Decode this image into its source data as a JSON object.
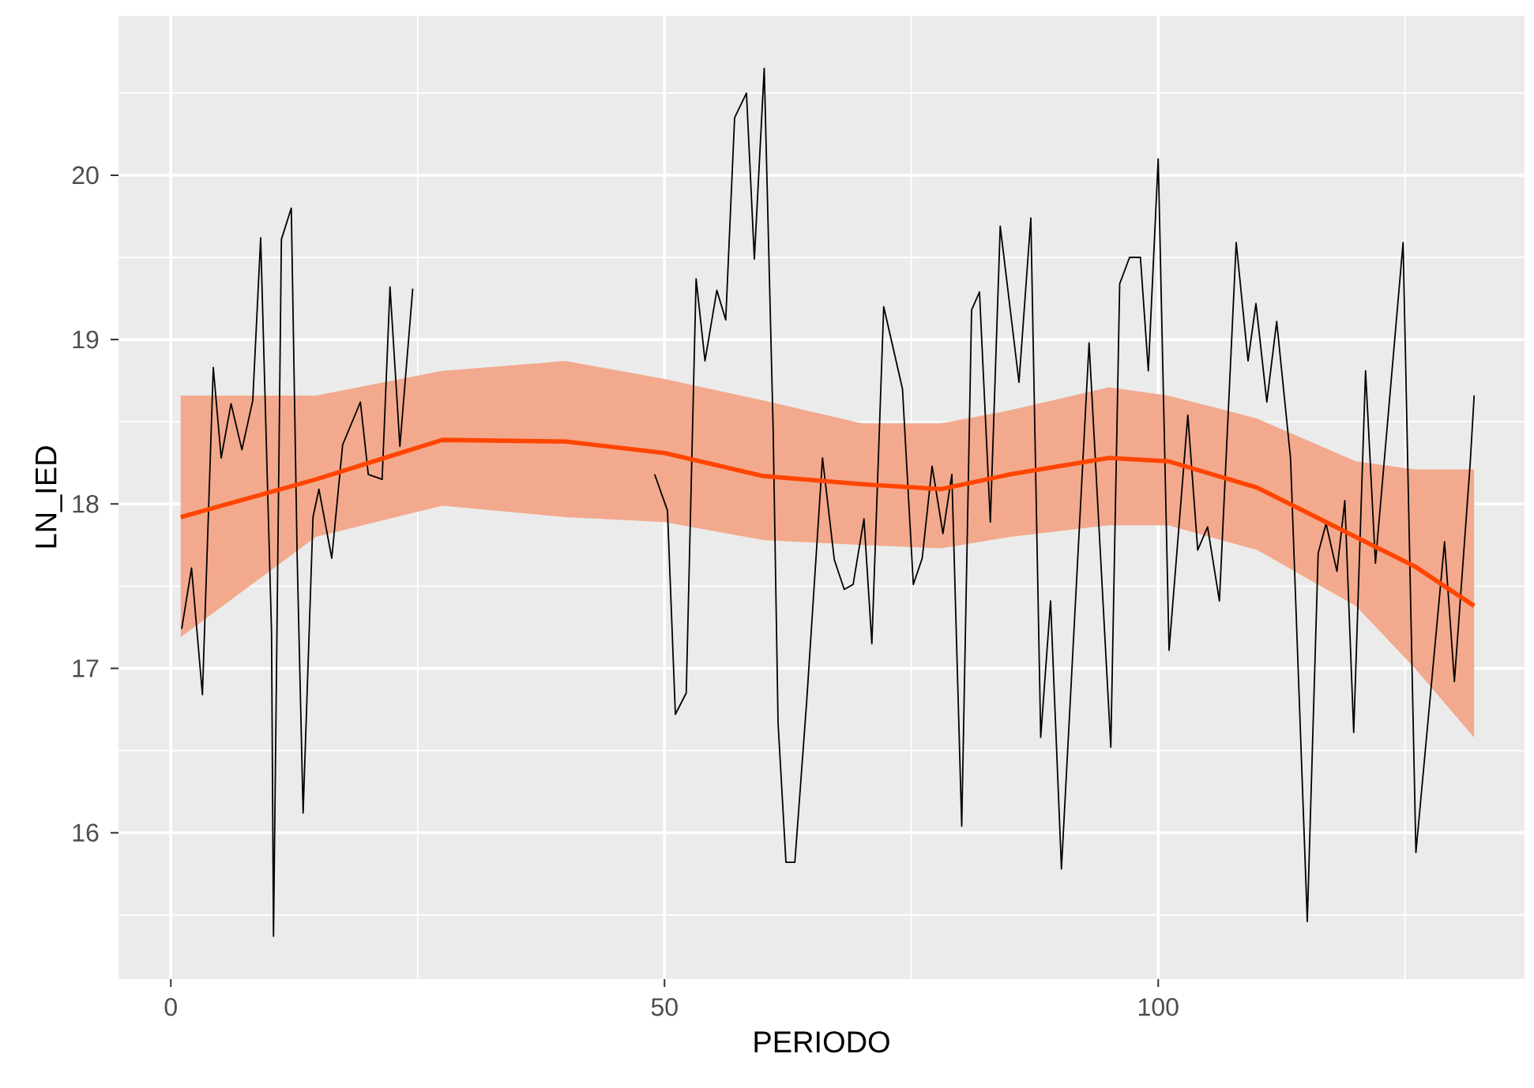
{
  "chart_data": {
    "type": "line",
    "xlabel": "PERIODO",
    "ylabel": "LN_IED",
    "xlim": [
      -5.3,
      137.1
    ],
    "ylim": [
      15.11,
      20.97
    ],
    "xticks": [
      0,
      50,
      100
    ],
    "yticks": [
      16,
      17,
      18,
      19,
      20
    ],
    "grid": true,
    "series": [
      {
        "color": "#000000",
        "x": [
          1.1,
          2.1,
          3.2,
          4.3,
          5.1,
          6.1,
          7.2,
          8.3,
          9.1,
          10.2,
          10.4,
          11.2,
          12.2,
          12.8,
          13.4,
          14.4,
          15.0,
          16.3,
          17.4,
          19.2,
          20.0,
          21.4,
          22.2,
          23.2,
          24.5,
          25,
          49.0,
          50.3,
          51.1,
          52.2,
          53.2,
          54.1,
          55.3,
          56.2,
          57.1,
          58.3,
          59.1,
          60.1,
          61.0,
          61.5,
          62.3,
          63.2,
          64.4,
          66.0,
          67.2,
          68.2,
          69.1,
          70.2,
          71.0,
          72.2,
          74.1,
          75.2,
          76.1,
          77.1,
          78.2,
          79.1,
          80.1,
          81.1,
          81.9,
          83.0,
          84.0,
          85.9,
          87.1,
          88.1,
          89.1,
          90.2,
          93.0,
          95.2,
          96.1,
          97.1,
          98.2,
          99.0,
          100.0,
          101.1,
          103.0,
          104.0,
          105.0,
          106.2,
          107.9,
          109.1,
          109.9,
          111.0,
          112.0,
          113.4,
          115.1,
          116.2,
          117.0,
          118.1,
          118.9,
          119.8,
          121.0,
          122.0,
          124.8,
          126.1,
          129.0,
          130.0,
          131.6,
          132.0
        ],
        "values": [
          17.24,
          17.61,
          16.84,
          18.83,
          18.28,
          18.61,
          18.33,
          18.63,
          19.62,
          17.22,
          15.37,
          19.61,
          19.8,
          17.67,
          16.12,
          17.92,
          18.09,
          17.67,
          18.36,
          18.62,
          18.18,
          18.15,
          19.32,
          18.35,
          19.31,
          null,
          18.18,
          17.96,
          16.72,
          16.85,
          19.37,
          18.87,
          19.3,
          19.12,
          20.35,
          20.5,
          19.49,
          20.65,
          18.46,
          16.67,
          15.82,
          15.82,
          16.8,
          18.28,
          17.66,
          17.48,
          17.51,
          17.91,
          17.15,
          19.2,
          18.7,
          17.51,
          17.67,
          18.23,
          17.82,
          18.18,
          16.04,
          19.18,
          19.29,
          17.89,
          19.69,
          18.74,
          19.74,
          16.58,
          17.41,
          15.78,
          18.98,
          16.52,
          19.34,
          19.5,
          19.5,
          18.81,
          20.1,
          17.11,
          18.54,
          17.72,
          17.86,
          17.41,
          19.59,
          18.87,
          19.22,
          18.62,
          19.11,
          18.28,
          15.46,
          17.7,
          17.88,
          17.59,
          18.02,
          16.61,
          18.81,
          17.64,
          19.59,
          15.88,
          17.77,
          16.92,
          18.25,
          18.66
        ]
      },
      {
        "color": "#ff4500",
        "x": [
          1,
          14.7,
          27.5,
          40,
          50,
          60,
          70,
          78,
          85,
          95,
          101,
          110,
          120,
          126,
          132
        ],
        "values": [
          17.92,
          18.15,
          18.39,
          18.38,
          18.31,
          18.17,
          18.12,
          18.09,
          18.18,
          18.28,
          18.26,
          18.1,
          17.8,
          17.62,
          17.38
        ],
        "lower": [
          17.19,
          17.8,
          17.99,
          17.92,
          17.89,
          17.78,
          17.75,
          17.73,
          17.8,
          17.87,
          17.87,
          17.72,
          17.38,
          17.0,
          16.58
        ],
        "upper": [
          18.66,
          18.66,
          18.81,
          18.87,
          18.76,
          18.63,
          18.49,
          18.49,
          18.57,
          18.71,
          18.66,
          18.52,
          18.26,
          18.21,
          18.21
        ]
      }
    ]
  }
}
